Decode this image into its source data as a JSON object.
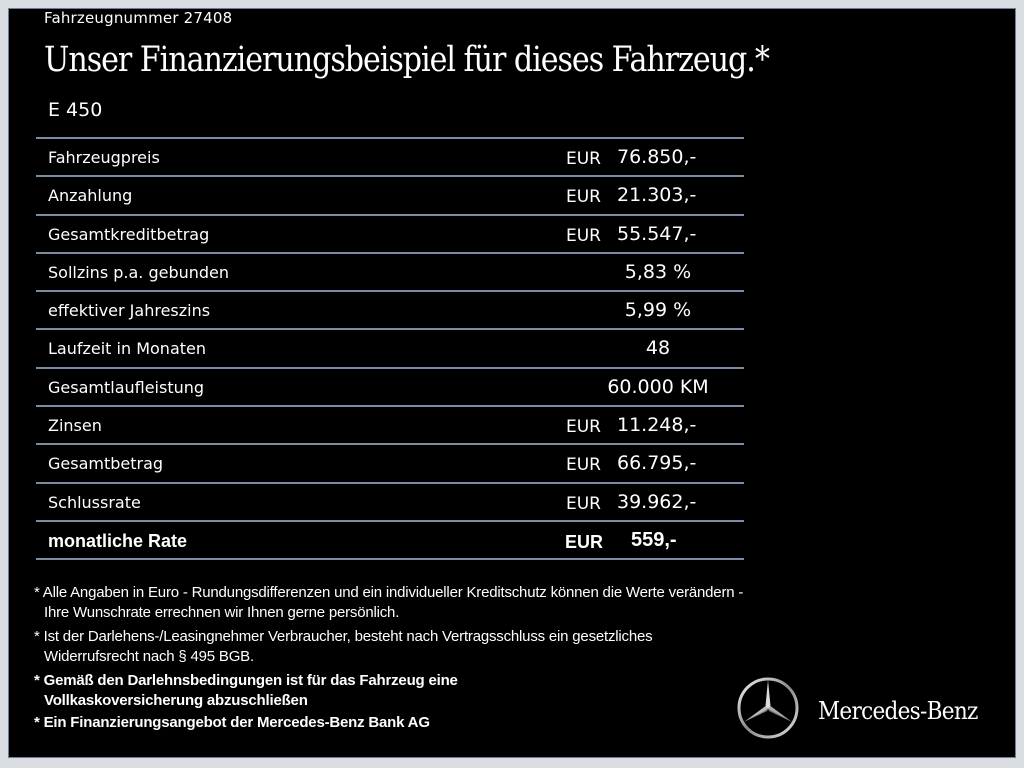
{
  "vehicle_number_label": "Fahrzeugnummer  27408",
  "title": "Unser Finanzierungsbeispiel für dieses Fahrzeug.*",
  "model": "E 450",
  "rows": [
    {
      "label": "Fahrzeugpreis",
      "currency": "EUR",
      "amount": "76.850,-"
    },
    {
      "label": "Anzahlung",
      "currency": "EUR",
      "amount": "21.303,-"
    },
    {
      "label": "Gesamtkreditbetrag",
      "currency": "EUR",
      "amount": "55.547,-"
    },
    {
      "label": "Sollzins p.a. gebunden",
      "value": "5,83 %"
    },
    {
      "label": "effektiver Jahreszins",
      "value": "5,99 %"
    },
    {
      "label": "Laufzeit in Monaten",
      "value": "48"
    },
    {
      "label": "Gesamtlaufleistung",
      "value": "60.000 KM"
    },
    {
      "label": "Zinsen",
      "currency": "EUR",
      "amount": "11.248,-"
    },
    {
      "label": "Gesamtbetrag",
      "currency": "EUR",
      "amount": "66.795,-"
    },
    {
      "label": "Schlussrate",
      "currency": "EUR",
      "amount": "39.962,-"
    },
    {
      "label": "monatliche Rate",
      "currency": "EUR",
      "amount": "559,-"
    }
  ],
  "notes": [
    "* Alle Angaben in Euro - Rundungsdifferenzen und ein individueller Kreditschutz können die Werte verändern - Ihre Wunschrate errechnen wir Ihnen gerne persönlich.",
    "* Ist der Darlehens-/Leasingnehmer Verbraucher, besteht nach Vertragsschluss ein gesetzliches Widerrufsrecht nach § 495 BGB.",
    "* Gemäß den Darlehnsbedingungen ist für das Fahrzeug eine Vollkaskoversicherung abzuschließen",
    "* Ein Finanzierungsangebot der Mercedes-Benz Bank AG"
  ],
  "brand": "Mercedes-Benz",
  "logo_icon": "mercedes-star-icon",
  "colors": {
    "background": "#000000",
    "divider": "#7a8da3",
    "frame": "#d9dde2"
  }
}
